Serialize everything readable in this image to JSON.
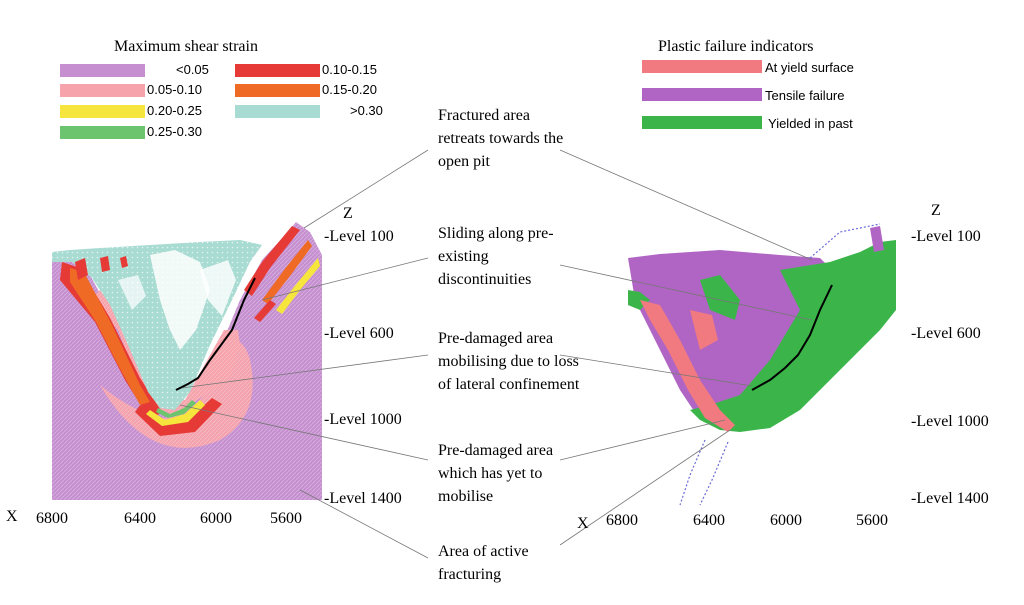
{
  "left_panel": {
    "legend_title": "Maximum shear strain",
    "legend": [
      {
        "label": "<0.05",
        "color": "#c58fd0"
      },
      {
        "label": "0.05-0.10",
        "color": "#f6a3ab"
      },
      {
        "label": "0.20-0.25",
        "color": "#f5e53c"
      },
      {
        "label": "0.25-0.30",
        "color": "#6cc56e"
      },
      {
        "label": "0.10-0.15",
        "color": "#e63a36"
      },
      {
        "label": "0.15-0.20",
        "color": "#ef6a24"
      },
      {
        "label": ">0.30",
        "color": "#a8dbd2"
      }
    ],
    "z_label": "Z",
    "levels": [
      "-Level 100",
      "-Level 600",
      "-Level 1000",
      "-Level 1400"
    ],
    "x_label": "X",
    "x_ticks": [
      "6800",
      "6400",
      "6000",
      "5600"
    ]
  },
  "right_panel": {
    "legend_title": "Plastic failure indicators",
    "legend": [
      {
        "label": "At yield surface",
        "color": "#f07a80"
      },
      {
        "label": "Tensile failure",
        "color": "#b065c4"
      },
      {
        "label": "Yielded in past",
        "color": "#3bb54a"
      }
    ],
    "z_label": "Z",
    "levels": [
      "-Level 100",
      "-Level 600",
      "-Level 1000",
      "-Level 1400"
    ],
    "x_label": "X",
    "x_ticks": [
      "6800",
      "6400",
      "6000",
      "5600"
    ]
  },
  "annotations": [
    "Fractured area retreats towards the open pit",
    "Sliding along pre-existing discontinuities",
    "Pre-damaged area mobilising due to loss of lateral confinement",
    "Pre-damaged area which has yet to mobilise",
    "Area of active fracturing"
  ],
  "colors": {
    "purple": "#c58fd0",
    "pink": "#f6a3ab",
    "red": "#e63a36",
    "orange": "#ef6a24",
    "yellow": "#f5e53c",
    "green": "#6cc56e",
    "cyan": "#a8dbd2",
    "r_purple": "#b065c4",
    "r_pink": "#f07a80",
    "r_green": "#3bb54a"
  }
}
